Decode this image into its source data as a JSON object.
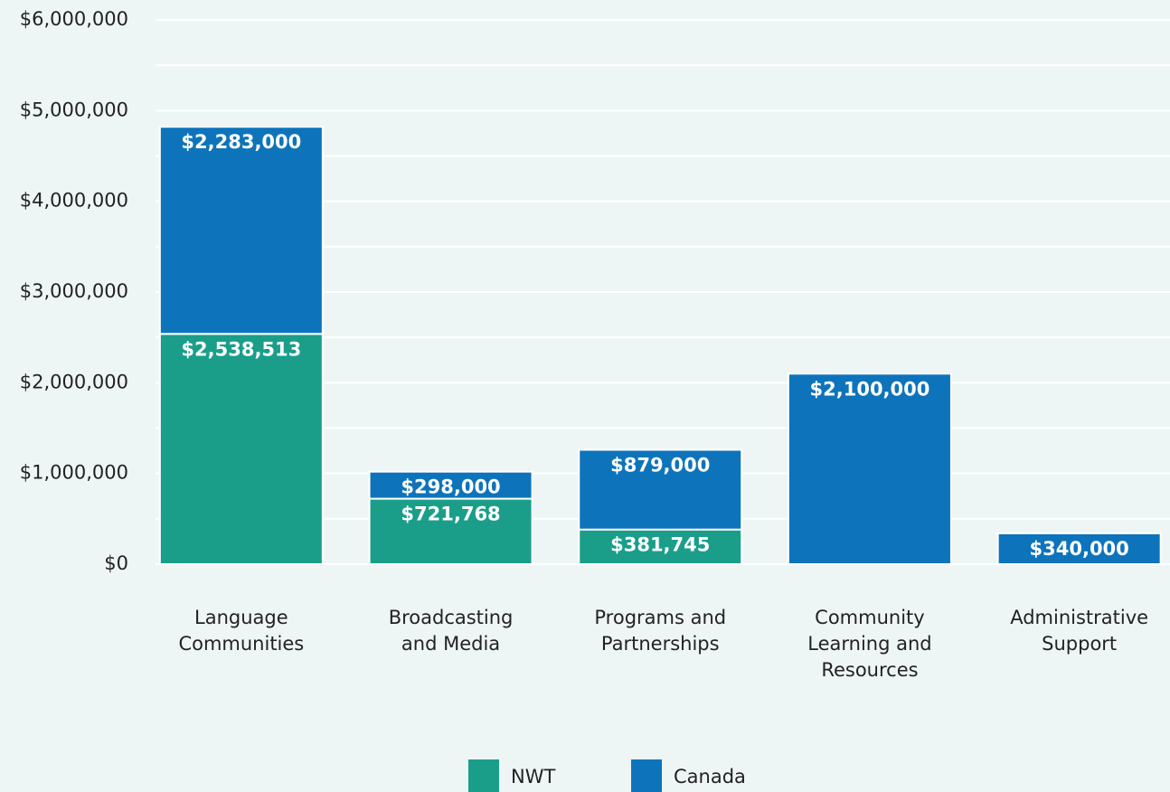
{
  "chart_data": {
    "type": "stacked_bar",
    "categories": [
      "Language Communities",
      "Broadcasting and Media",
      "Programs and Partnerships",
      "Community Learning and Resources",
      "Administrative Support"
    ],
    "series": [
      {
        "name": "NWT",
        "color": "#1a9e8a",
        "values": [
          2538513,
          721768,
          381745,
          null,
          null
        ],
        "value_labels": [
          "$2,538,513",
          "$721,768",
          "$381,745",
          null,
          null
        ]
      },
      {
        "name": "Canada",
        "color": "#0d74bb",
        "values": [
          2283000,
          298000,
          879000,
          2100000,
          340000
        ],
        "value_labels": [
          "$2,283,000",
          "$298,000",
          "$879,000",
          "$2,100,000",
          "$340,000"
        ]
      }
    ],
    "ylim": [
      0,
      6000000
    ],
    "yticks": [
      {
        "value": 0,
        "label": "$0"
      },
      {
        "value": 1000000,
        "label": "$1,000,000"
      },
      {
        "value": 2000000,
        "label": "$2,000,000"
      },
      {
        "value": 3000000,
        "label": "$3,000,000"
      },
      {
        "value": 4000000,
        "label": "$4,000,000"
      },
      {
        "value": 5000000,
        "label": "$5,000,000"
      },
      {
        "value": 6000000,
        "label": "$6,000,000"
      }
    ],
    "minor_yticks": [
      500000,
      1500000,
      2500000,
      3500000,
      4500000,
      5500000
    ],
    "grid": true,
    "legend": "bottom"
  }
}
